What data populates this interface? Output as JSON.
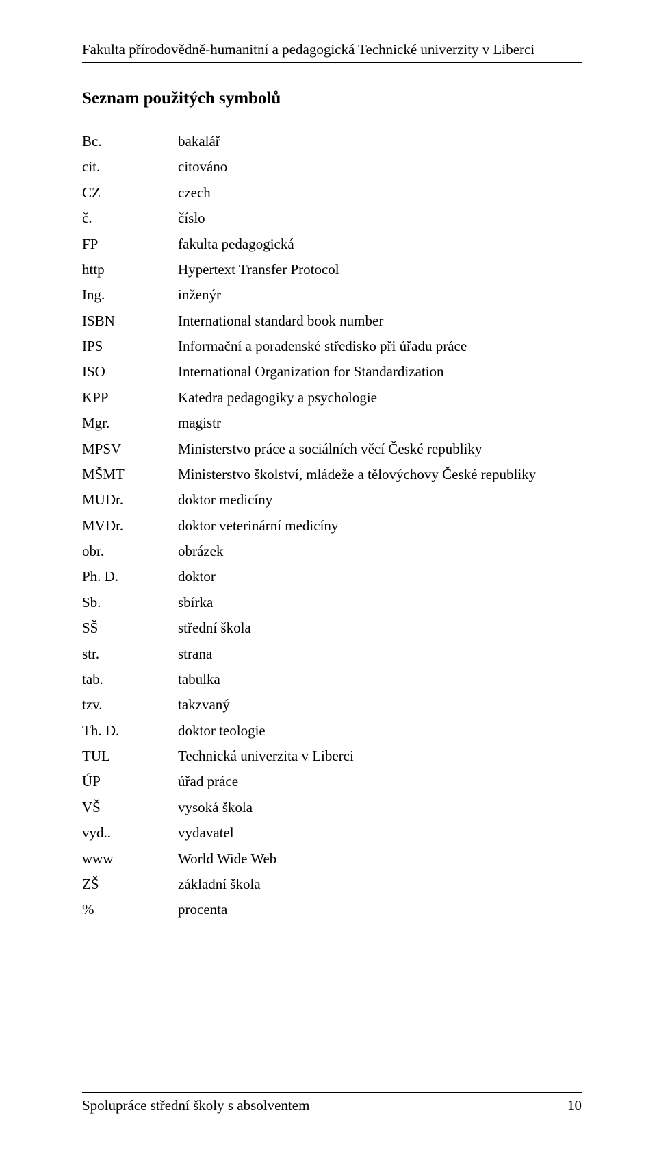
{
  "header": {
    "running_title": "Fakulta přírodovědně-humanitní a pedagogická Technické univerzity v Liberci"
  },
  "section": {
    "title": "Seznam použitých symbolů"
  },
  "symbols": [
    {
      "abbr": "Bc.",
      "def": "bakalář"
    },
    {
      "abbr": "cit.",
      "def": "citováno"
    },
    {
      "abbr": "CZ",
      "def": "czech"
    },
    {
      "abbr": "č.",
      "def": "číslo"
    },
    {
      "abbr": "FP",
      "def": "fakulta pedagogická"
    },
    {
      "abbr": "http",
      "def": "Hypertext Transfer Protocol"
    },
    {
      "abbr": "Ing.",
      "def": "inženýr"
    },
    {
      "abbr": "ISBN",
      "def": "International standard book number"
    },
    {
      "abbr": "IPS",
      "def": "Informační a poradenské středisko při úřadu práce"
    },
    {
      "abbr": "ISO",
      "def": "International Organization for Standardization"
    },
    {
      "abbr": "KPP",
      "def": "Katedra pedagogiky a psychologie"
    },
    {
      "abbr": "Mgr.",
      "def": "magistr"
    },
    {
      "abbr": "MPSV",
      "def": "Ministerstvo práce a sociálních věcí České republiky"
    },
    {
      "abbr": "MŠMT",
      "def": "Ministerstvo školství, mládeže a tělovýchovy České republiky"
    },
    {
      "abbr": "MUDr.",
      "def": "doktor medicíny"
    },
    {
      "abbr": "MVDr.",
      "def": "doktor veterinární medicíny"
    },
    {
      "abbr": "obr.",
      "def": "obrázek"
    },
    {
      "abbr": "Ph. D.",
      "def": "doktor"
    },
    {
      "abbr": "Sb.",
      "def": "sbírka"
    },
    {
      "abbr": "SŠ",
      "def": "střední škola"
    },
    {
      "abbr": "str.",
      "def": "strana"
    },
    {
      "abbr": "tab.",
      "def": "tabulka"
    },
    {
      "abbr": "tzv.",
      "def": "takzvaný"
    },
    {
      "abbr": "Th. D.",
      "def": "doktor teologie"
    },
    {
      "abbr": "TUL",
      "def": "Technická univerzita v Liberci"
    },
    {
      "abbr": "ÚP",
      "def": "úřad práce"
    },
    {
      "abbr": "VŠ",
      "def": "vysoká škola"
    },
    {
      "abbr": "vyd..",
      "def": "vydavatel"
    },
    {
      "abbr": "www",
      "def": "World Wide Web"
    },
    {
      "abbr": "ZŠ",
      "def": "základní škola"
    },
    {
      "abbr": "%",
      "def": "procenta"
    }
  ],
  "footer": {
    "text": "Spolupráce střední školy s absolventem",
    "page_number": "10"
  }
}
